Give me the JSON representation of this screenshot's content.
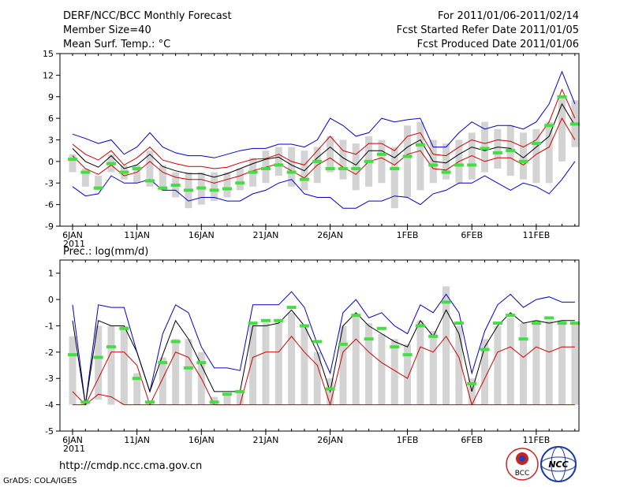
{
  "header": {
    "title_left": "DERF/NCC/BCC Monthly Forecast",
    "member_size": "Member Size=40",
    "variable": "Mean Surf. Temp.: °C",
    "forecast_period": "For 2011/01/06-2011/02/14",
    "start_date": "Fcst Started Refer Date 2011/01/05",
    "produced_date": "Fcst Produced Date 2011/01/06"
  },
  "footer": {
    "url": "http://cmdp.ncc.cma.gov.cn",
    "grads_credit": "GrADS: COLA/IGES",
    "logo_bcc": "BCC",
    "logo_ncc": "NCC"
  },
  "colors": {
    "envelope": "#0000cc",
    "spread": "#cc0000",
    "mean": "#000000",
    "box": "#d3d3d3",
    "marker": "#44dd44"
  },
  "chart_data": [
    {
      "type": "box-ensemble",
      "title": "Mean Surf. Temp.: °C",
      "ylim": [
        -9,
        15
      ],
      "yticks": [
        -9,
        -6,
        -3,
        0,
        3,
        6,
        9,
        12,
        15
      ],
      "x_tick_labels": [
        "6JAN\n2011",
        "11JAN",
        "16JAN",
        "21JAN",
        "26JAN",
        "1FEB",
        "6FEB",
        "11FEB"
      ],
      "x_tick_days": [
        0,
        5,
        10,
        15,
        20,
        26,
        31,
        36
      ],
      "days": 40,
      "series": [
        {
          "name": "max",
          "values": [
            3.8,
            3.2,
            2.5,
            3.0,
            1.0,
            2.0,
            4.0,
            2.0,
            1.2,
            0.8,
            0.8,
            0.5,
            1.0,
            1.5,
            1.8,
            1.8,
            2.4,
            2.4,
            2.0,
            3.0,
            6.0,
            5.0,
            3.5,
            4.0,
            6.0,
            5.5,
            5.8,
            6.0,
            2.0,
            2.0,
            4.0,
            5.5,
            4.5,
            5.0,
            5.0,
            4.5,
            5.5,
            8.0,
            12.5,
            8.0
          ]
        },
        {
          "name": "upper",
          "values": [
            2.4,
            1.0,
            0.2,
            1.5,
            -0.5,
            0.5,
            2.0,
            0.2,
            -0.3,
            -0.7,
            -0.7,
            -1.0,
            -0.8,
            -0.2,
            0.3,
            0.4,
            1.0,
            0.0,
            -0.5,
            1.5,
            3.5,
            1.5,
            1.0,
            2.5,
            2.5,
            1.5,
            3.5,
            4.0,
            1.0,
            0.8,
            2.0,
            3.0,
            2.5,
            3.0,
            2.8,
            2.0,
            3.0,
            5.5,
            10.0,
            6.0
          ]
        },
        {
          "name": "mean",
          "values": [
            1.8,
            0.0,
            -0.8,
            0.8,
            -1.0,
            -0.5,
            1.0,
            -0.7,
            -1.3,
            -1.7,
            -1.7,
            -2.2,
            -1.7,
            -1.0,
            -0.3,
            0.3,
            0.6,
            -0.5,
            -1.3,
            0.5,
            2.0,
            0.5,
            -0.5,
            1.5,
            1.5,
            0.5,
            2.0,
            3.0,
            0.0,
            -0.2,
            1.0,
            2.0,
            1.5,
            2.0,
            1.8,
            0.5,
            2.0,
            3.5,
            8.0,
            5.0
          ]
        },
        {
          "name": "lower",
          "values": [
            0.8,
            -1.0,
            -1.8,
            -0.5,
            -2.0,
            -1.5,
            0.0,
            -1.5,
            -2.2,
            -2.5,
            -2.5,
            -3.0,
            -2.5,
            -2.0,
            -1.3,
            -0.8,
            -0.3,
            -1.3,
            -2.3,
            -0.5,
            0.5,
            -0.8,
            -1.8,
            0.0,
            0.5,
            -0.5,
            1.0,
            1.5,
            -1.0,
            -1.2,
            0.0,
            0.8,
            0.0,
            0.5,
            0.5,
            -0.5,
            1.0,
            2.0,
            6.0,
            3.0
          ]
        },
        {
          "name": "min",
          "values": [
            -3.5,
            -4.8,
            -4.5,
            -2.0,
            -3.0,
            -3.0,
            -2.5,
            -4.0,
            -4.0,
            -5.5,
            -5.0,
            -5.0,
            -5.5,
            -5.5,
            -4.5,
            -4.0,
            -3.0,
            -2.5,
            -4.5,
            -5.0,
            -5.0,
            -6.5,
            -6.5,
            -5.5,
            -5.5,
            -4.8,
            -5.0,
            -6.0,
            -4.5,
            -4.0,
            -3.0,
            -3.0,
            -2.0,
            -3.0,
            -4.0,
            -3.0,
            -3.5,
            -4.5,
            -2.5,
            0.0
          ]
        },
        {
          "name": "box_high",
          "values": [
            1.0,
            -1.0,
            -2.0,
            1.0,
            -0.5,
            -0.5,
            1.5,
            -0.5,
            -1.5,
            -1.5,
            -1.5,
            -1.5,
            -1.5,
            -1.0,
            0.5,
            1.5,
            2.0,
            2.0,
            1.5,
            2.0,
            3.5,
            3.0,
            2.5,
            3.5,
            3.0,
            2.0,
            5.0,
            5.5,
            3.0,
            2.5,
            3.0,
            4.0,
            5.5,
            4.5,
            5.0,
            4.0,
            4.5,
            5.5,
            9.0,
            8.5
          ]
        },
        {
          "name": "box_low",
          "values": [
            -1.5,
            -3.5,
            -4.0,
            -1.5,
            -2.5,
            -3.0,
            -3.5,
            -4.0,
            -5.0,
            -6.5,
            -6.0,
            -5.5,
            -5.0,
            -4.0,
            -3.5,
            -3.0,
            -2.0,
            -3.5,
            -4.0,
            -3.0,
            -1.5,
            -2.5,
            -4.0,
            -3.5,
            -3.0,
            -6.5,
            -5.0,
            -4.0,
            -3.0,
            -2.5,
            -3.0,
            -2.5,
            -1.5,
            -1.0,
            -2.0,
            -2.5,
            -3.0,
            -3.0,
            0.0,
            2.0
          ]
        },
        {
          "name": "observed",
          "values": [
            0.3,
            -1.5,
            -3.7,
            -0.3,
            -1.5,
            -1.0,
            -2.7,
            -3.7,
            -3.3,
            -4.0,
            -3.7,
            -4.0,
            -3.8,
            -3.0,
            -1.5,
            -1.0,
            -0.5,
            -1.5,
            -2.5,
            0.0,
            -1.0,
            -1.0,
            -1.0,
            0.0,
            1.0,
            -1.0,
            0.7,
            2.3,
            -0.5,
            -1.5,
            -0.5,
            -0.5,
            1.8,
            1.2,
            1.5,
            0.0,
            2.5,
            5.0,
            9.0,
            5.2
          ]
        }
      ]
    },
    {
      "type": "box-ensemble",
      "title": "Prec.: log(mm/d)",
      "ylim": [
        -5,
        1.5
      ],
      "yticks": [
        -5,
        -4,
        -3,
        -2,
        -1,
        0,
        1
      ],
      "x_tick_labels": [
        "6JAN\n2011",
        "11JAN",
        "16JAN",
        "21JAN",
        "26JAN",
        "1FEB",
        "6FEB",
        "11FEB"
      ],
      "x_tick_days": [
        0,
        5,
        10,
        15,
        20,
        26,
        31,
        36
      ],
      "days": 40,
      "series": [
        {
          "name": "max",
          "values": [
            -0.2,
            -4.0,
            -0.2,
            -0.3,
            -0.3,
            -2.0,
            -3.5,
            -1.3,
            -0.2,
            -0.5,
            -1.8,
            -2.6,
            -2.6,
            -2.7,
            -0.2,
            -0.2,
            -0.2,
            0.3,
            -0.3,
            -1.7,
            -2.8,
            -0.5,
            0.0,
            -0.7,
            -0.5,
            -1.0,
            -1.3,
            -0.2,
            -0.5,
            0.2,
            -0.5,
            -2.8,
            -1.2,
            -0.2,
            0.2,
            -0.3,
            0.0,
            0.1,
            -0.1,
            -0.1
          ]
        },
        {
          "name": "mean",
          "values": [
            -0.8,
            -4.0,
            -0.8,
            -1.0,
            -1.0,
            -2.0,
            -3.5,
            -2.1,
            -0.8,
            -1.5,
            -2.5,
            -3.5,
            -3.5,
            -3.5,
            -1.0,
            -1.0,
            -0.9,
            -0.4,
            -1.0,
            -2.0,
            -3.5,
            -1.0,
            -0.5,
            -1.0,
            -1.3,
            -1.6,
            -1.8,
            -0.8,
            -1.4,
            -0.4,
            -1.3,
            -3.5,
            -1.8,
            -1.0,
            -0.5,
            -0.9,
            -0.8,
            -0.9,
            -0.8,
            -0.8
          ]
        },
        {
          "name": "low",
          "values": [
            -3.5,
            -4.0,
            -3.0,
            -2.0,
            -2.0,
            -2.5,
            -4.0,
            -3.0,
            -2.0,
            -2.2,
            -3.0,
            -4.0,
            -4.0,
            -4.0,
            -2.2,
            -2.0,
            -2.0,
            -1.4,
            -2.0,
            -2.5,
            -4.0,
            -2.0,
            -1.5,
            -2.0,
            -2.4,
            -2.7,
            -3.0,
            -1.8,
            -2.0,
            -1.4,
            -2.2,
            -4.0,
            -3.0,
            -2.0,
            -1.8,
            -2.2,
            -1.8,
            -2.0,
            -1.8,
            -1.8
          ]
        },
        {
          "name": "min",
          "values": [
            -4.0,
            -4.0,
            -3.6,
            -3.7,
            -4.0,
            -4.0,
            -4.0,
            -4.0,
            -4.0,
            -4.0,
            -4.0,
            -4.0,
            -4.0,
            -4.0,
            -4.0,
            -4.0,
            -4.0,
            -4.0,
            -4.0,
            -4.0,
            -4.0,
            -4.0,
            -4.0,
            -4.0,
            -4.0,
            -4.0,
            -4.0,
            -4.0,
            -4.0,
            -4.0,
            -4.0,
            -4.0,
            -4.0,
            -4.0,
            -4.0,
            -4.0,
            -4.0,
            -4.0,
            -4.0,
            -4.0
          ]
        },
        {
          "name": "box_high",
          "values": [
            -1.4,
            -3.9,
            -1.0,
            -1.0,
            -1.0,
            -2.8,
            -3.9,
            -2.2,
            -1.5,
            -1.5,
            -2.0,
            -3.7,
            -3.6,
            -3.5,
            -0.9,
            -0.9,
            -0.8,
            -0.5,
            -1.0,
            -2.0,
            -3.0,
            -1.0,
            -0.6,
            -0.9,
            -1.3,
            -1.5,
            -1.7,
            -0.8,
            -1.2,
            0.5,
            -1.0,
            -3.0,
            -1.5,
            -1.0,
            -0.7,
            -0.9,
            -0.8,
            -0.8,
            -0.8,
            -0.9
          ]
        },
        {
          "name": "box_low",
          "values": [
            -4.0,
            -4.0,
            -3.8,
            -4.0,
            -4.0,
            -4.0,
            -4.0,
            -4.0,
            -4.0,
            -4.0,
            -4.0,
            -4.0,
            -4.0,
            -4.0,
            -4.0,
            -4.0,
            -4.0,
            -4.0,
            -4.0,
            -4.0,
            -4.0,
            -4.0,
            -4.0,
            -4.0,
            -4.0,
            -4.0,
            -4.0,
            -4.0,
            -4.0,
            -4.0,
            -4.0,
            -4.0,
            -4.0,
            -4.0,
            -4.0,
            -4.0,
            -4.0,
            -4.0,
            -4.0,
            -4.0
          ]
        },
        {
          "name": "observed",
          "values": [
            -2.1,
            -3.9,
            -2.2,
            -1.8,
            -1.1,
            -3.0,
            -3.9,
            -2.4,
            -1.6,
            -2.6,
            -2.4,
            -3.9,
            -3.6,
            -3.5,
            -0.9,
            -0.8,
            -0.8,
            -0.3,
            -1.0,
            -1.6,
            -3.4,
            -1.7,
            -0.6,
            -1.5,
            -1.1,
            -1.8,
            -2.1,
            -1.0,
            -1.4,
            -0.1,
            -0.9,
            -3.2,
            -1.9,
            -0.9,
            -0.6,
            -1.5,
            -0.9,
            -0.7,
            -0.9,
            -0.9
          ]
        }
      ]
    }
  ]
}
